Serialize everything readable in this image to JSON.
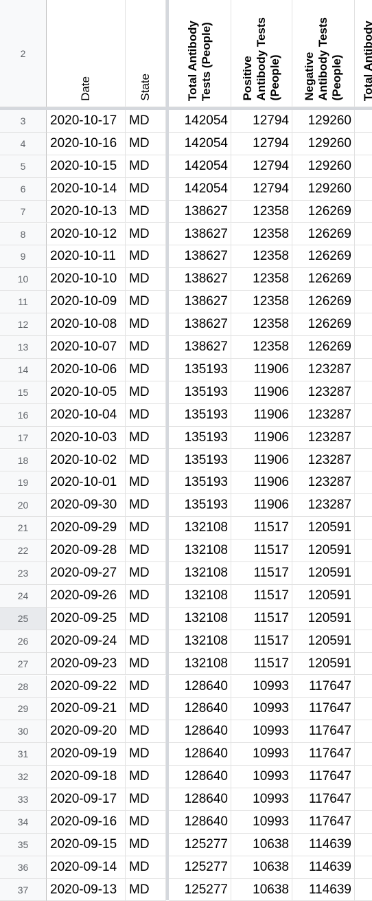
{
  "header_row_number": "2",
  "columns": [
    {
      "key": "date",
      "label": "Date",
      "bold": false
    },
    {
      "key": "state",
      "label": "State",
      "bold": false
    },
    {
      "key": "total",
      "label": "Total Antibody\nTests (People)",
      "bold": true
    },
    {
      "key": "positive",
      "label": "Positive\nAntibody Tests\n(People)",
      "bold": true
    },
    {
      "key": "negative",
      "label": "Negative\nAntibody Tests\n(People)",
      "bold": true
    },
    {
      "key": "total2",
      "label": "Total Antibody",
      "bold": true
    }
  ],
  "selected_row": "25",
  "rows": [
    {
      "n": "3",
      "date": "2020-10-17",
      "state": "MD",
      "total": "142054",
      "positive": "12794",
      "negative": "129260"
    },
    {
      "n": "4",
      "date": "2020-10-16",
      "state": "MD",
      "total": "142054",
      "positive": "12794",
      "negative": "129260"
    },
    {
      "n": "5",
      "date": "2020-10-15",
      "state": "MD",
      "total": "142054",
      "positive": "12794",
      "negative": "129260"
    },
    {
      "n": "6",
      "date": "2020-10-14",
      "state": "MD",
      "total": "142054",
      "positive": "12794",
      "negative": "129260"
    },
    {
      "n": "7",
      "date": "2020-10-13",
      "state": "MD",
      "total": "138627",
      "positive": "12358",
      "negative": "126269"
    },
    {
      "n": "8",
      "date": "2020-10-12",
      "state": "MD",
      "total": "138627",
      "positive": "12358",
      "negative": "126269"
    },
    {
      "n": "9",
      "date": "2020-10-11",
      "state": "MD",
      "total": "138627",
      "positive": "12358",
      "negative": "126269"
    },
    {
      "n": "10",
      "date": "2020-10-10",
      "state": "MD",
      "total": "138627",
      "positive": "12358",
      "negative": "126269"
    },
    {
      "n": "11",
      "date": "2020-10-09",
      "state": "MD",
      "total": "138627",
      "positive": "12358",
      "negative": "126269"
    },
    {
      "n": "12",
      "date": "2020-10-08",
      "state": "MD",
      "total": "138627",
      "positive": "12358",
      "negative": "126269"
    },
    {
      "n": "13",
      "date": "2020-10-07",
      "state": "MD",
      "total": "138627",
      "positive": "12358",
      "negative": "126269"
    },
    {
      "n": "14",
      "date": "2020-10-06",
      "state": "MD",
      "total": "135193",
      "positive": "11906",
      "negative": "123287"
    },
    {
      "n": "15",
      "date": "2020-10-05",
      "state": "MD",
      "total": "135193",
      "positive": "11906",
      "negative": "123287"
    },
    {
      "n": "16",
      "date": "2020-10-04",
      "state": "MD",
      "total": "135193",
      "positive": "11906",
      "negative": "123287"
    },
    {
      "n": "17",
      "date": "2020-10-03",
      "state": "MD",
      "total": "135193",
      "positive": "11906",
      "negative": "123287"
    },
    {
      "n": "18",
      "date": "2020-10-02",
      "state": "MD",
      "total": "135193",
      "positive": "11906",
      "negative": "123287"
    },
    {
      "n": "19",
      "date": "2020-10-01",
      "state": "MD",
      "total": "135193",
      "positive": "11906",
      "negative": "123287"
    },
    {
      "n": "20",
      "date": "2020-09-30",
      "state": "MD",
      "total": "135193",
      "positive": "11906",
      "negative": "123287"
    },
    {
      "n": "21",
      "date": "2020-09-29",
      "state": "MD",
      "total": "132108",
      "positive": "11517",
      "negative": "120591"
    },
    {
      "n": "22",
      "date": "2020-09-28",
      "state": "MD",
      "total": "132108",
      "positive": "11517",
      "negative": "120591"
    },
    {
      "n": "23",
      "date": "2020-09-27",
      "state": "MD",
      "total": "132108",
      "positive": "11517",
      "negative": "120591"
    },
    {
      "n": "24",
      "date": "2020-09-26",
      "state": "MD",
      "total": "132108",
      "positive": "11517",
      "negative": "120591"
    },
    {
      "n": "25",
      "date": "2020-09-25",
      "state": "MD",
      "total": "132108",
      "positive": "11517",
      "negative": "120591"
    },
    {
      "n": "26",
      "date": "2020-09-24",
      "state": "MD",
      "total": "132108",
      "positive": "11517",
      "negative": "120591"
    },
    {
      "n": "27",
      "date": "2020-09-23",
      "state": "MD",
      "total": "132108",
      "positive": "11517",
      "negative": "120591"
    },
    {
      "n": "28",
      "date": "2020-09-22",
      "state": "MD",
      "total": "128640",
      "positive": "10993",
      "negative": "117647"
    },
    {
      "n": "29",
      "date": "2020-09-21",
      "state": "MD",
      "total": "128640",
      "positive": "10993",
      "negative": "117647"
    },
    {
      "n": "30",
      "date": "2020-09-20",
      "state": "MD",
      "total": "128640",
      "positive": "10993",
      "negative": "117647"
    },
    {
      "n": "31",
      "date": "2020-09-19",
      "state": "MD",
      "total": "128640",
      "positive": "10993",
      "negative": "117647"
    },
    {
      "n": "32",
      "date": "2020-09-18",
      "state": "MD",
      "total": "128640",
      "positive": "10993",
      "negative": "117647"
    },
    {
      "n": "33",
      "date": "2020-09-17",
      "state": "MD",
      "total": "128640",
      "positive": "10993",
      "negative": "117647"
    },
    {
      "n": "34",
      "date": "2020-09-16",
      "state": "MD",
      "total": "128640",
      "positive": "10993",
      "negative": "117647"
    },
    {
      "n": "35",
      "date": "2020-09-15",
      "state": "MD",
      "total": "125277",
      "positive": "10638",
      "negative": "114639"
    },
    {
      "n": "36",
      "date": "2020-09-14",
      "state": "MD",
      "total": "125277",
      "positive": "10638",
      "negative": "114639"
    },
    {
      "n": "37",
      "date": "2020-09-13",
      "state": "MD",
      "total": "125277",
      "positive": "10638",
      "negative": "114639"
    }
  ]
}
